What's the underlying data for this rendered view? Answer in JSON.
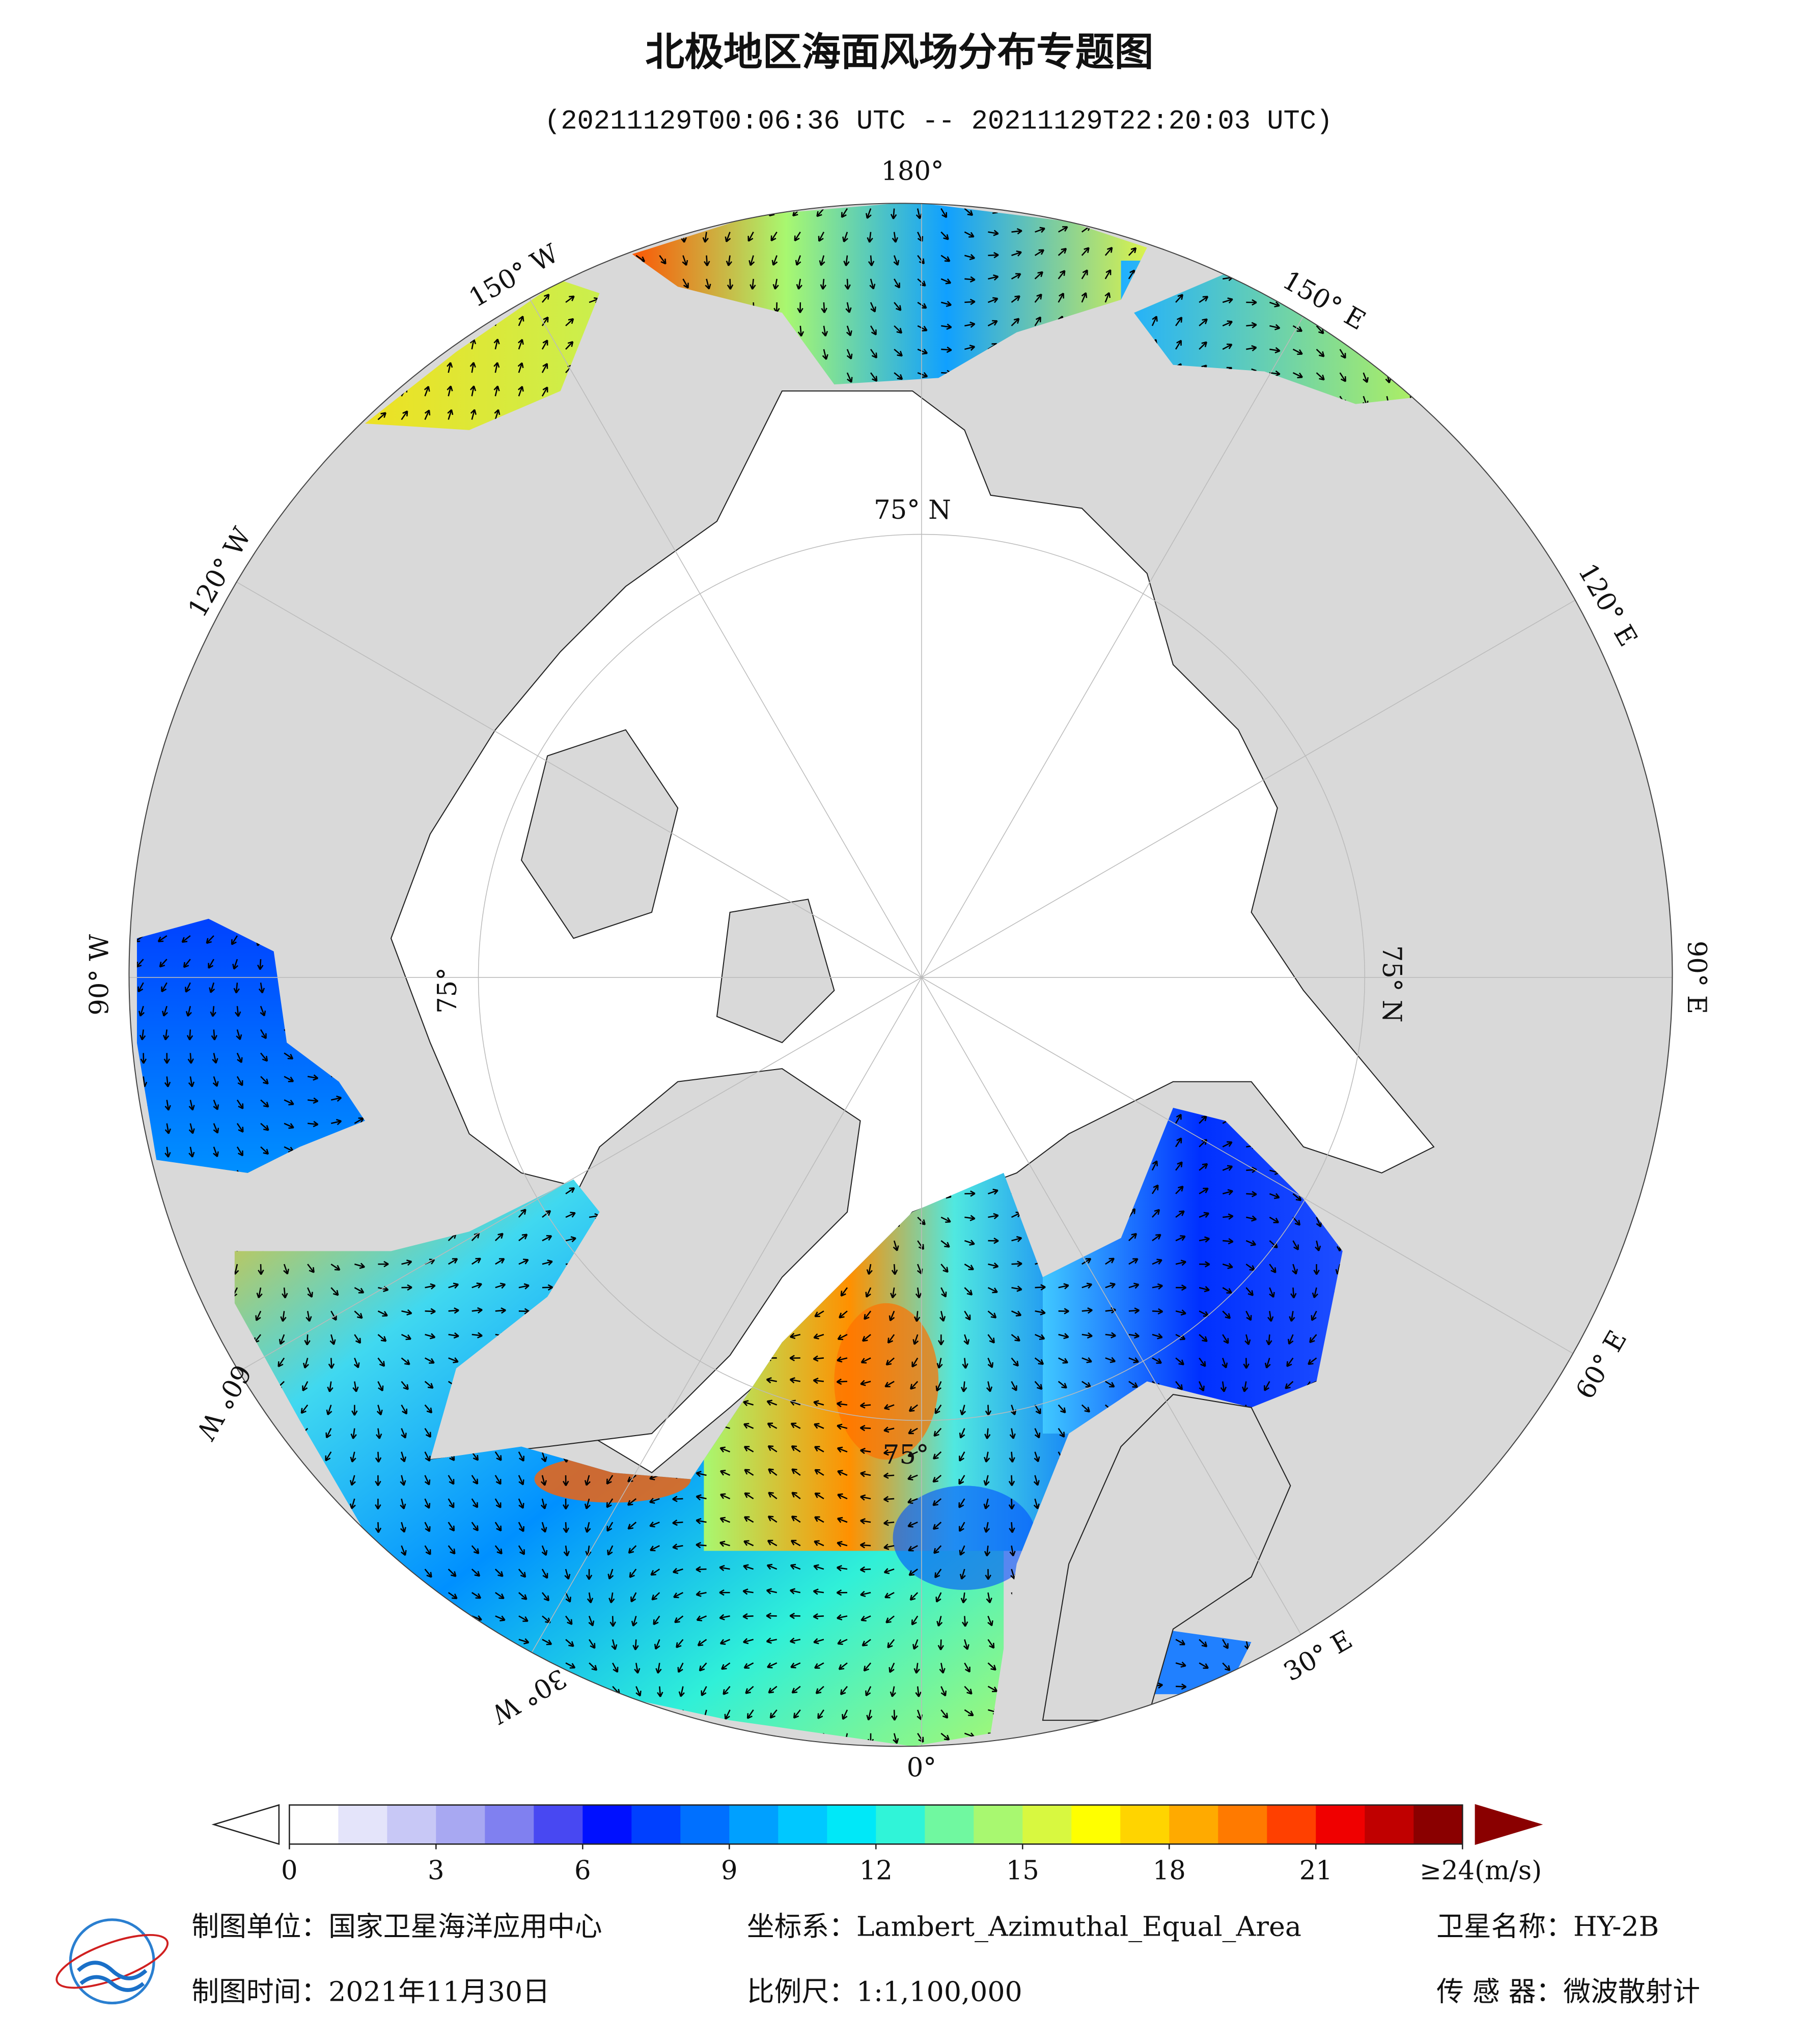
{
  "header": {
    "title": "北极地区海面风场分布专题图",
    "subtitle": "(20211129T00:06:36 UTC -- 20211129T22:20:03 UTC)"
  },
  "map": {
    "meridian_labels": [
      "180°",
      "150° W",
      "120° W",
      "90° W",
      "60° W",
      "30° W",
      "0°",
      "30° E",
      "60° E",
      "90° E",
      "120° E",
      "150° E"
    ],
    "latitude_labels": [
      "75° N",
      "75° N",
      "75°",
      "75°"
    ]
  },
  "colorbar": {
    "range": [
      0,
      24
    ],
    "ticks": [
      0,
      3,
      6,
      9,
      12,
      15,
      18,
      21,
      {
        "value": 24,
        "label": "≥24(m/s)"
      }
    ],
    "colors": [
      "#ffffff",
      "#e4e4fa",
      "#c8c8f6",
      "#a8a8f2",
      "#8080f0",
      "#4848f2",
      "#0010ff",
      "#0040ff",
      "#0070ff",
      "#00a0ff",
      "#00c8ff",
      "#00e8f8",
      "#30f4d8",
      "#70f8a0",
      "#a8f870",
      "#d8f840",
      "#ffff00",
      "#ffd400",
      "#ffaa00",
      "#ff7a00",
      "#ff4000",
      "#f00000",
      "#c00000",
      "#8a0000"
    ],
    "under_color": "#ffffff",
    "over_color": "#8a0000"
  },
  "footer": {
    "unit": "制图单位：国家卫星海洋应用中心",
    "crs": "坐标系：Lambert_Azimuthal_Equal_Area",
    "satellite": "卫星名称：HY-2B",
    "date": "制图时间：2021年11月30日",
    "scale": "比例尺：1:1,100,000",
    "sensor": "传 感 器：微波散射计"
  }
}
